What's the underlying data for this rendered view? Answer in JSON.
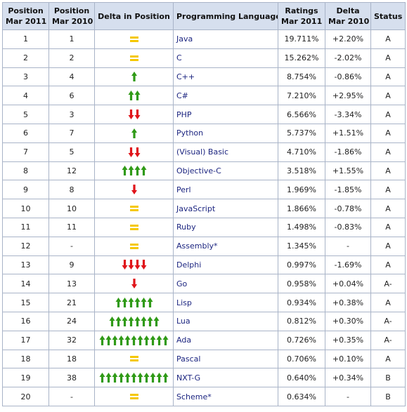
{
  "table": {
    "header": [
      [
        "Position",
        "Mar 2011"
      ],
      [
        "Position",
        "Mar 2010"
      ],
      [
        "Delta in Position"
      ],
      [
        "Programming Language"
      ],
      [
        "Ratings",
        "Mar 2011"
      ],
      [
        "Delta",
        "Mar 2010"
      ],
      [
        "Status"
      ]
    ],
    "rows": [
      [
        "1",
        "1",
        {
          "dir": "same",
          "count": 1
        },
        "Java",
        "19.711%",
        "+2.20%",
        "A"
      ],
      [
        "2",
        "2",
        {
          "dir": "same",
          "count": 1
        },
        "C",
        "15.262%",
        "-2.02%",
        "A"
      ],
      [
        "3",
        "4",
        {
          "dir": "up",
          "count": 1
        },
        "C++",
        "8.754%",
        "-0.86%",
        "A"
      ],
      [
        "4",
        "6",
        {
          "dir": "up",
          "count": 2
        },
        "C#",
        "7.210%",
        "+2.95%",
        "A"
      ],
      [
        "5",
        "3",
        {
          "dir": "down",
          "count": 2
        },
        "PHP",
        "6.566%",
        "-3.34%",
        "A"
      ],
      [
        "6",
        "7",
        {
          "dir": "up",
          "count": 1
        },
        "Python",
        "5.737%",
        "+1.51%",
        "A"
      ],
      [
        "7",
        "5",
        {
          "dir": "down",
          "count": 2
        },
        "(Visual) Basic",
        "4.710%",
        "-1.86%",
        "A"
      ],
      [
        "8",
        "12",
        {
          "dir": "up",
          "count": 4
        },
        "Objective-C",
        "3.518%",
        "+1.55%",
        "A"
      ],
      [
        "9",
        "8",
        {
          "dir": "down",
          "count": 1
        },
        "Perl",
        "1.969%",
        "-1.85%",
        "A"
      ],
      [
        "10",
        "10",
        {
          "dir": "same",
          "count": 1
        },
        "JavaScript",
        "1.866%",
        "-0.78%",
        "A"
      ],
      [
        "11",
        "11",
        {
          "dir": "same",
          "count": 1
        },
        "Ruby",
        "1.498%",
        "-0.83%",
        "A"
      ],
      [
        "12",
        "-",
        {
          "dir": "same",
          "count": 1
        },
        "Assembly*",
        "1.345%",
        "-",
        "A"
      ],
      [
        "13",
        "9",
        {
          "dir": "down",
          "count": 4
        },
        "Delphi",
        "0.997%",
        "-1.69%",
        "A"
      ],
      [
        "14",
        "13",
        {
          "dir": "down",
          "count": 1
        },
        "Go",
        "0.958%",
        "+0.04%",
        "A-"
      ],
      [
        "15",
        "21",
        {
          "dir": "up",
          "count": 6
        },
        "Lisp",
        "0.934%",
        "+0.38%",
        "A"
      ],
      [
        "16",
        "24",
        {
          "dir": "up",
          "count": 8
        },
        "Lua",
        "0.812%",
        "+0.30%",
        "A-"
      ],
      [
        "17",
        "32",
        {
          "dir": "up",
          "count": 11
        },
        "Ada",
        "0.726%",
        "+0.35%",
        "A-"
      ],
      [
        "18",
        "18",
        {
          "dir": "same",
          "count": 1
        },
        "Pascal",
        "0.706%",
        "+0.10%",
        "A"
      ],
      [
        "19",
        "38",
        {
          "dir": "up",
          "count": 11
        },
        "NXT-G",
        "0.640%",
        "+0.34%",
        "B"
      ],
      [
        "20",
        "-",
        {
          "dir": "same",
          "count": 1
        },
        "Scheme*",
        "0.634%",
        "-",
        "B"
      ]
    ]
  }
}
